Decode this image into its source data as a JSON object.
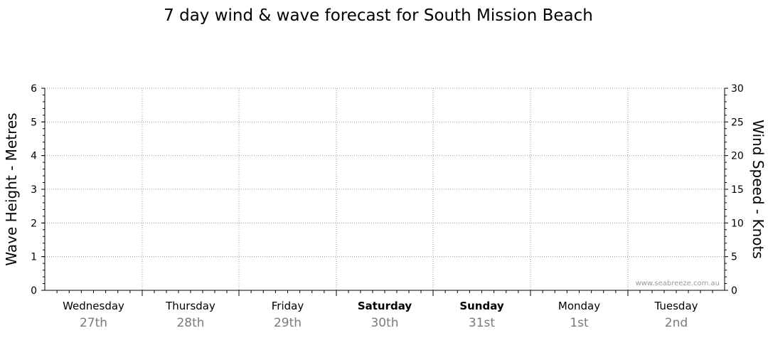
{
  "chart_data": {
    "type": "line",
    "title": "7 day wind & wave forecast for South Mission Beach",
    "y_left_label": "Wave Height - Metres",
    "y_right_label": "Wind Speed - Knots",
    "y_left_lim": [
      0,
      6
    ],
    "y_left_ticks": [
      "0",
      "1",
      "2",
      "3",
      "4",
      "5",
      "6"
    ],
    "y_right_lim": [
      0,
      30
    ],
    "y_right_ticks": [
      "0",
      "5",
      "10",
      "15",
      "20",
      "25",
      "30"
    ],
    "grid": true,
    "days": [
      {
        "name": "Wednesday",
        "date": "27th",
        "weekend": false
      },
      {
        "name": "Thursday",
        "date": "28th",
        "weekend": false
      },
      {
        "name": "Friday",
        "date": "29th",
        "weekend": false
      },
      {
        "name": "Saturday",
        "date": "30th",
        "weekend": true
      },
      {
        "name": "Sunday",
        "date": "31st",
        "weekend": true
      },
      {
        "name": "Monday",
        "date": "1st",
        "weekend": false
      },
      {
        "name": "Tuesday",
        "date": "2nd",
        "weekend": false
      }
    ],
    "series": [],
    "watermark": "www.seabreeze.com.au"
  }
}
